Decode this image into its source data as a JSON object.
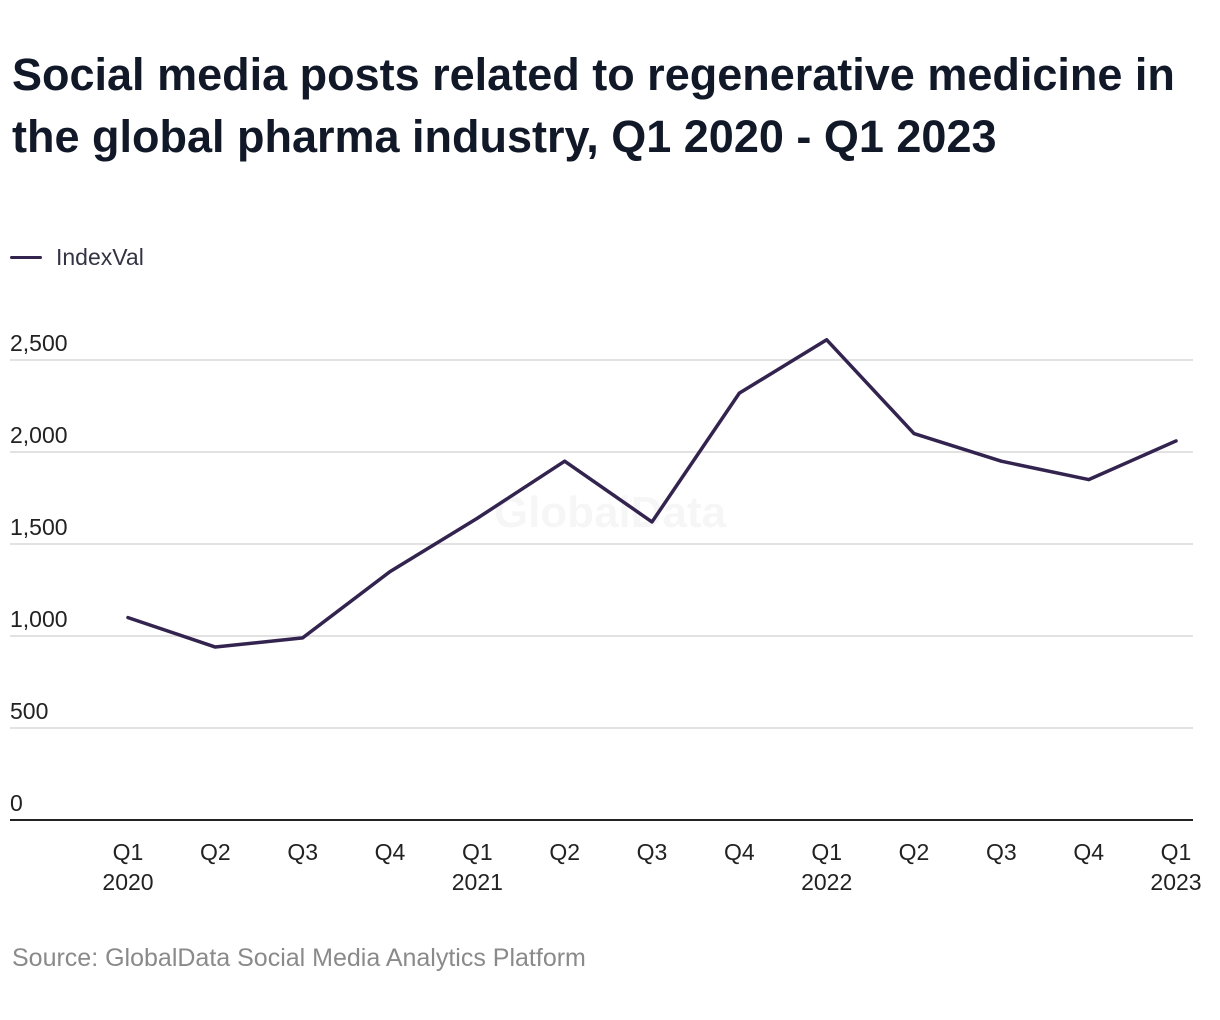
{
  "title": "Social media posts related to regenerative medicine in the global pharma industry, Q1 2020 - Q1 2023",
  "source": "Source: GlobalData Social Media Analytics Platform",
  "watermark": "GlobalData",
  "colors": {
    "line": "#33234f",
    "grid": "#d9d9d9",
    "axis": "#222222",
    "text": "#222222"
  },
  "chart_data": {
    "type": "line",
    "legend_position": "top-left",
    "grid": true,
    "ylim": [
      0,
      2500
    ],
    "yticks": [
      0,
      500,
      1000,
      1500,
      2000,
      2500
    ],
    "ytick_labels": [
      "0",
      "500",
      "1,000",
      "1,500",
      "2,000",
      "2,500"
    ],
    "categories": [
      [
        "Q1",
        "2020"
      ],
      [
        "Q2",
        ""
      ],
      [
        "Q3",
        ""
      ],
      [
        "Q4",
        ""
      ],
      [
        "Q1",
        "2021"
      ],
      [
        "Q2",
        ""
      ],
      [
        "Q3",
        ""
      ],
      [
        "Q4",
        ""
      ],
      [
        "Q1",
        "2022"
      ],
      [
        "Q2",
        ""
      ],
      [
        "Q3",
        ""
      ],
      [
        "Q4",
        ""
      ],
      [
        "Q1",
        "2023"
      ]
    ],
    "series": [
      {
        "name": "IndexVal",
        "values": [
          1100,
          940,
          990,
          1350,
          1640,
          1950,
          1620,
          2320,
          2610,
          2100,
          1950,
          1850,
          2060
        ]
      }
    ]
  }
}
